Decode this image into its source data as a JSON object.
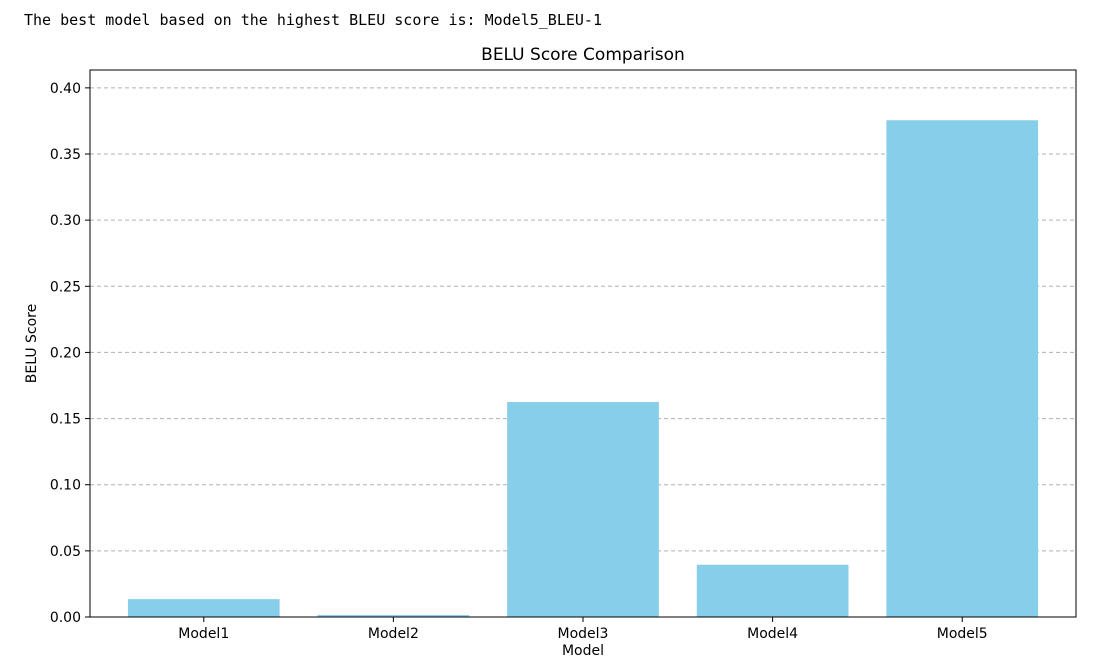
{
  "output": {
    "text": "The best model based on the highest BLEU score is: Model5_BLEU-1"
  },
  "chart_data": {
    "type": "bar",
    "title": "BELU Score Comparison",
    "xlabel": "Model",
    "ylabel": "BELU Score",
    "categories": [
      "Model1",
      "Model2",
      "Model3",
      "Model4",
      "Model5"
    ],
    "values": [
      0.0135,
      0.0015,
      0.1625,
      0.0395,
      0.3755
    ],
    "ylim": [
      0,
      0.4135
    ],
    "yticks": [
      0.0,
      0.05,
      0.1,
      0.15,
      0.2,
      0.25,
      0.3,
      0.35,
      0.4
    ],
    "ytick_labels": [
      "0.00",
      "0.05",
      "0.10",
      "0.15",
      "0.20",
      "0.25",
      "0.30",
      "0.35",
      "0.40"
    ],
    "grid": "y-dashed",
    "bar_color": "#87CEEB"
  }
}
